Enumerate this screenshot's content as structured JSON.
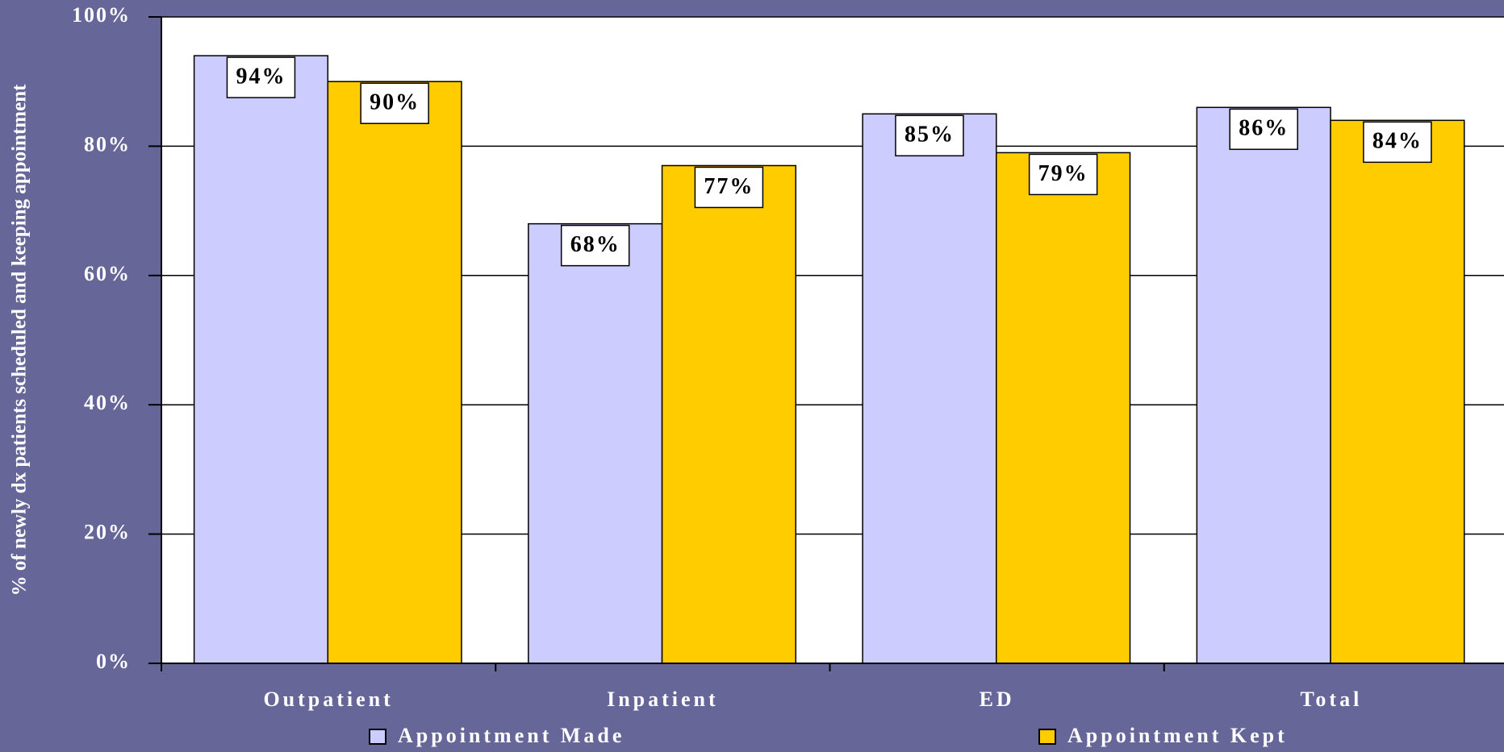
{
  "chart_data": {
    "type": "bar",
    "y_axis_label": "% of newly dx patients scheduled and keeping appointment",
    "categories": [
      "Outpatient",
      "Inpatient",
      "ED",
      "Total"
    ],
    "series": [
      {
        "name": "Appointment Made",
        "color": "#ccccff",
        "values": [
          94,
          68,
          85,
          86
        ],
        "value_labels": [
          "94%",
          "68%",
          "85%",
          "86%"
        ]
      },
      {
        "name": "Appointment Kept",
        "color": "#ffcc00",
        "values": [
          90,
          77,
          79,
          84
        ],
        "value_labels": [
          "90%",
          "77%",
          "79%",
          "84%"
        ]
      }
    ],
    "ylim": [
      0,
      100
    ],
    "yticks": [
      {
        "value": 0,
        "label": "0%"
      },
      {
        "value": 20,
        "label": "20%"
      },
      {
        "value": 40,
        "label": "40%"
      },
      {
        "value": 60,
        "label": "60%"
      },
      {
        "value": 80,
        "label": "80%"
      },
      {
        "value": 100,
        "label": "100%"
      }
    ],
    "grid": true
  }
}
